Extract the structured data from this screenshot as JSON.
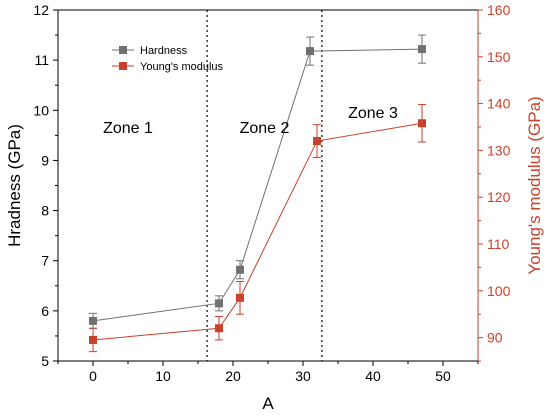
{
  "chart_data": {
    "type": "line",
    "xlabel": "A",
    "ylabel_left": "Hradness (GPa)",
    "ylabel_right": "Young's modulus (GPa)",
    "xlim": [
      -5,
      55
    ],
    "ylim_left": [
      5,
      12
    ],
    "ylim_right": [
      85,
      160
    ],
    "x_ticks": [
      0,
      10,
      20,
      30,
      40,
      50
    ],
    "y_left_ticks": [
      5,
      6,
      7,
      8,
      9,
      10,
      11,
      12
    ],
    "y_right_ticks": [
      90,
      100,
      110,
      120,
      130,
      140,
      150,
      160
    ],
    "grid": false,
    "legend_position": "top-left",
    "series": [
      {
        "name": "Hardness",
        "axis": "left",
        "color": "#707070",
        "x": [
          0,
          18,
          21,
          31,
          47
        ],
        "y": [
          5.8,
          6.15,
          6.82,
          11.18,
          11.22
        ],
        "err": [
          0.15,
          0.15,
          0.18,
          0.28,
          0.28
        ]
      },
      {
        "name": "Young's modulus",
        "axis": "right",
        "color": "#c8412c",
        "x": [
          0,
          18,
          21,
          32,
          47
        ],
        "y": [
          89.5,
          92.0,
          98.5,
          132.0,
          135.8
        ],
        "err": [
          2.5,
          2.5,
          3.5,
          3.5,
          4.0
        ]
      }
    ],
    "zone_dividers_x": [
      16.3,
      32.7
    ],
    "zones": [
      {
        "label": "Zone 1",
        "x": 5,
        "y_left": 9.55
      },
      {
        "label": "Zone 2",
        "x": 24.5,
        "y_left": 9.55
      },
      {
        "label": "Zone 3",
        "x": 40,
        "y_left": 9.85
      }
    ],
    "colors": {
      "left_axis": "#000000",
      "right_axis": "#c8412c"
    }
  }
}
